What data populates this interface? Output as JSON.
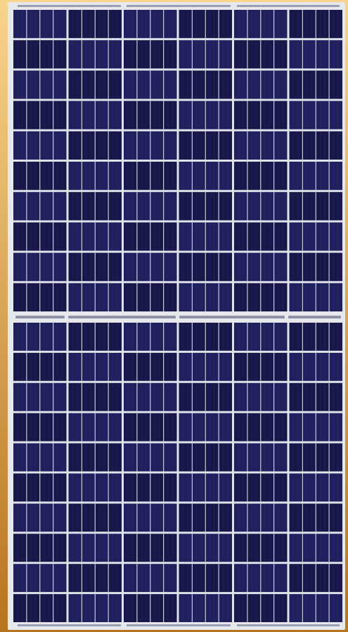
{
  "scene": {
    "subject": "solar-panel",
    "background": "sunset-solar-field",
    "colors": {
      "frame": "#e6e8ec",
      "cell": "#20205e",
      "cell_dark": "#17174a",
      "busbar": "#c9cbd6",
      "gap": "#dfe2e8",
      "sky_top": "#f8d48c",
      "sky_bottom": "#b8741e"
    },
    "module": {
      "halves": 2,
      "cell_columns": 6,
      "cell_rows_per_half": 10,
      "busbars_per_cell": 3
    }
  }
}
